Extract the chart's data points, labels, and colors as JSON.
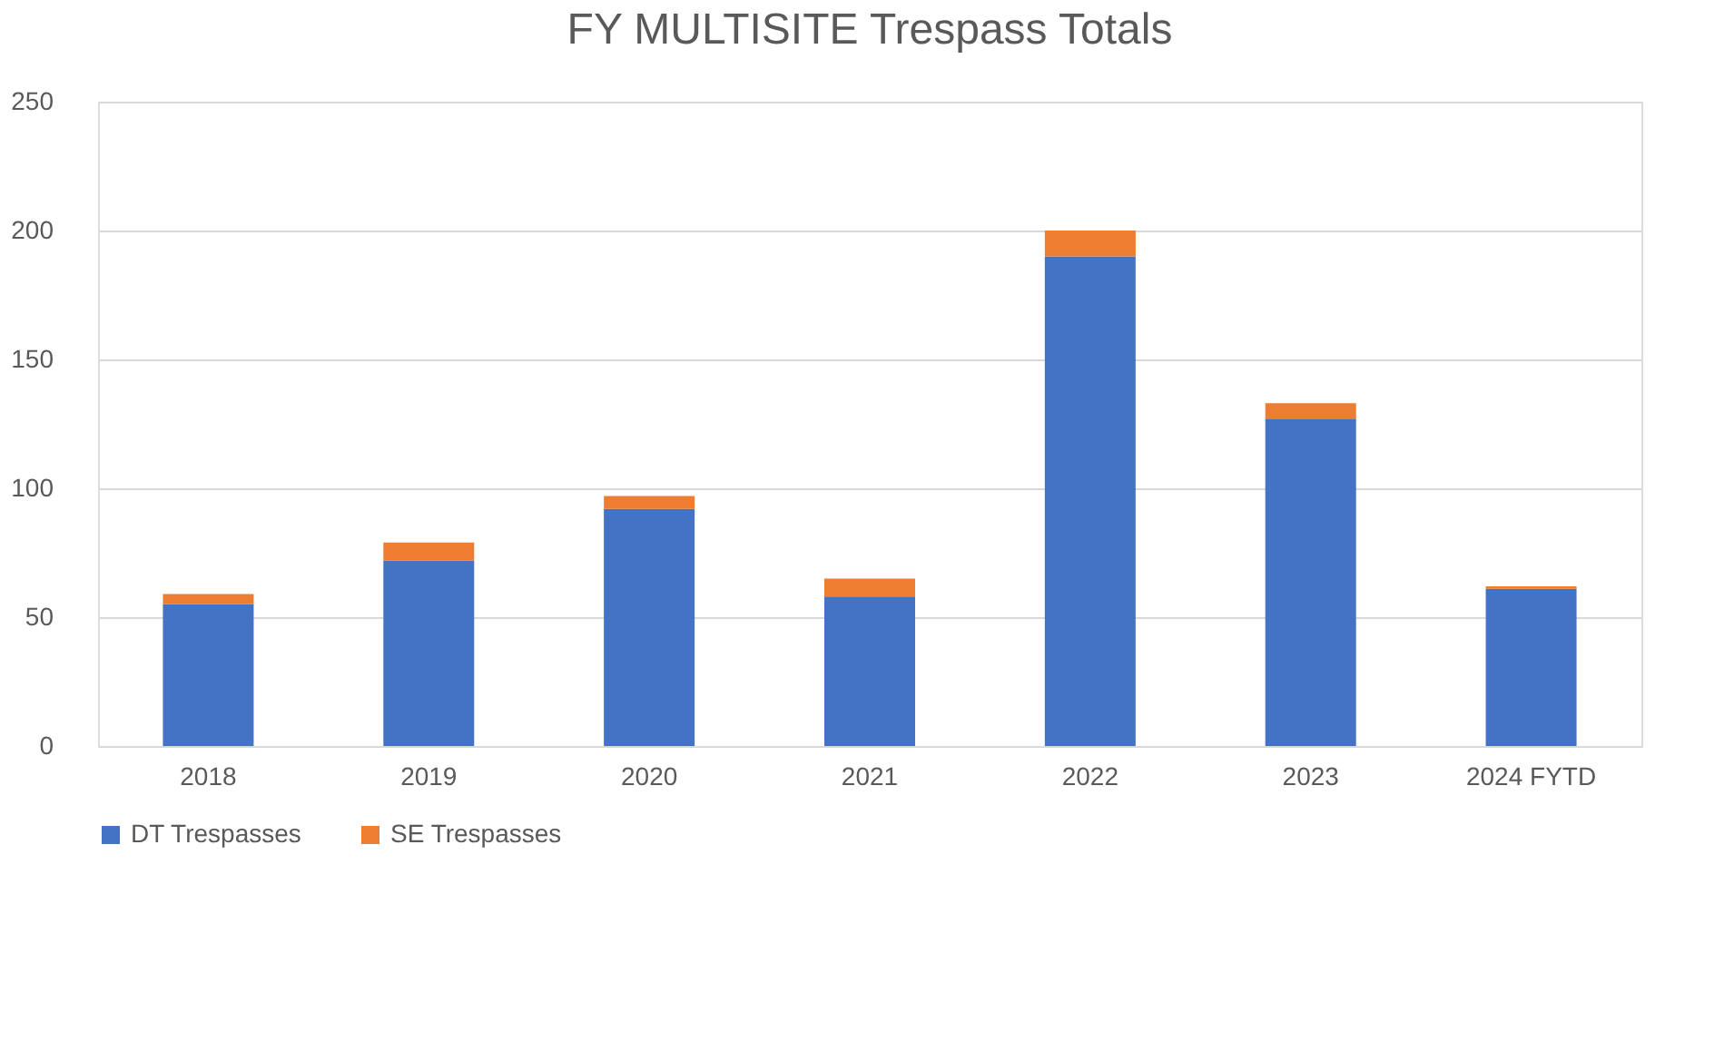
{
  "chart_data": {
    "type": "bar",
    "title": "FY MULTISITE Trespass Totals",
    "categories": [
      "2018",
      "2019",
      "2020",
      "2021",
      "2022",
      "2023",
      "2024 FYTD"
    ],
    "stacked": true,
    "series": [
      {
        "name": "DT Trespasses",
        "color": "#4472c4",
        "values": [
          55,
          72,
          92,
          58,
          190,
          127,
          61
        ]
      },
      {
        "name": "SE Trespasses",
        "color": "#ed7d31",
        "values": [
          4,
          7,
          5,
          7,
          10,
          6,
          1
        ]
      }
    ],
    "ylim": [
      0,
      250
    ],
    "yticks": [
      0,
      50,
      100,
      150,
      200,
      250
    ],
    "grid": "y",
    "legend": "bottom"
  }
}
